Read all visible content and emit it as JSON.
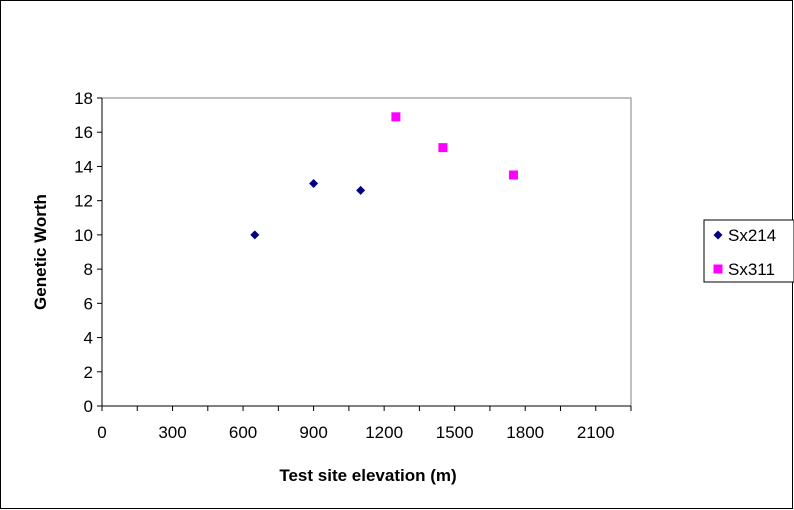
{
  "chart_data": {
    "type": "scatter",
    "title": "",
    "xlabel": "Test site elevation (m)",
    "ylabel": "Genetic Worth",
    "xlim": [
      0,
      2250
    ],
    "ylim": [
      0,
      18
    ],
    "xticks": [
      0,
      300,
      600,
      900,
      1200,
      1500,
      1800,
      2100
    ],
    "yticks": [
      0,
      2,
      4,
      6,
      8,
      10,
      12,
      14,
      16,
      18
    ],
    "grid": false,
    "legend_position": "right",
    "series": [
      {
        "name": "Sx214",
        "color": "#000080",
        "marker": "diamond",
        "points": [
          {
            "x": 650,
            "y": 10.0
          },
          {
            "x": 900,
            "y": 13.0
          },
          {
            "x": 1100,
            "y": 12.6
          }
        ]
      },
      {
        "name": "Sx311",
        "color": "#ff00ff",
        "marker": "square",
        "points": [
          {
            "x": 1250,
            "y": 16.9
          },
          {
            "x": 1450,
            "y": 15.1
          },
          {
            "x": 1750,
            "y": 13.5
          }
        ]
      }
    ]
  }
}
